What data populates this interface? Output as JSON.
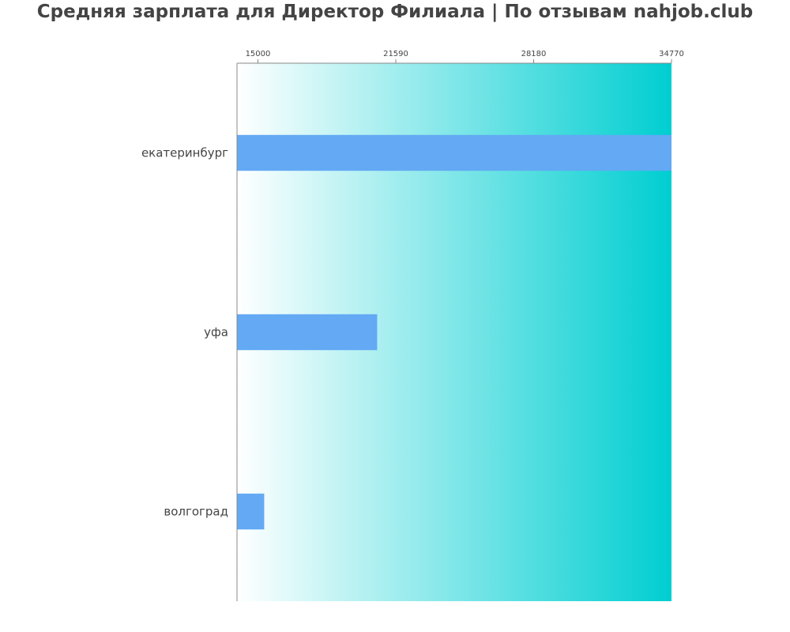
{
  "chart_data": {
    "type": "bar",
    "orientation": "horizontal",
    "title": "Средняя зарплата для Директор Филиала | По отзывам nahjob.club",
    "categories": [
      "екатеринбург",
      "уфа",
      "волгоград"
    ],
    "values": [
      34770,
      20700,
      15300
    ],
    "xlim": [
      14000,
      34770
    ],
    "x_ticks": [
      15000,
      21590,
      28180,
      34770
    ],
    "x_tick_labels": [
      "15000",
      "21590",
      "28180",
      "34770"
    ],
    "x_axis_position": "top",
    "xlabel": "",
    "ylabel": "",
    "grid": false,
    "legend": "none",
    "colors": {
      "bar": "#63a9f4",
      "gradient_start": "#ffffff",
      "gradient_end": "#00ced1",
      "axis": "#888888",
      "text": "#444444"
    }
  }
}
